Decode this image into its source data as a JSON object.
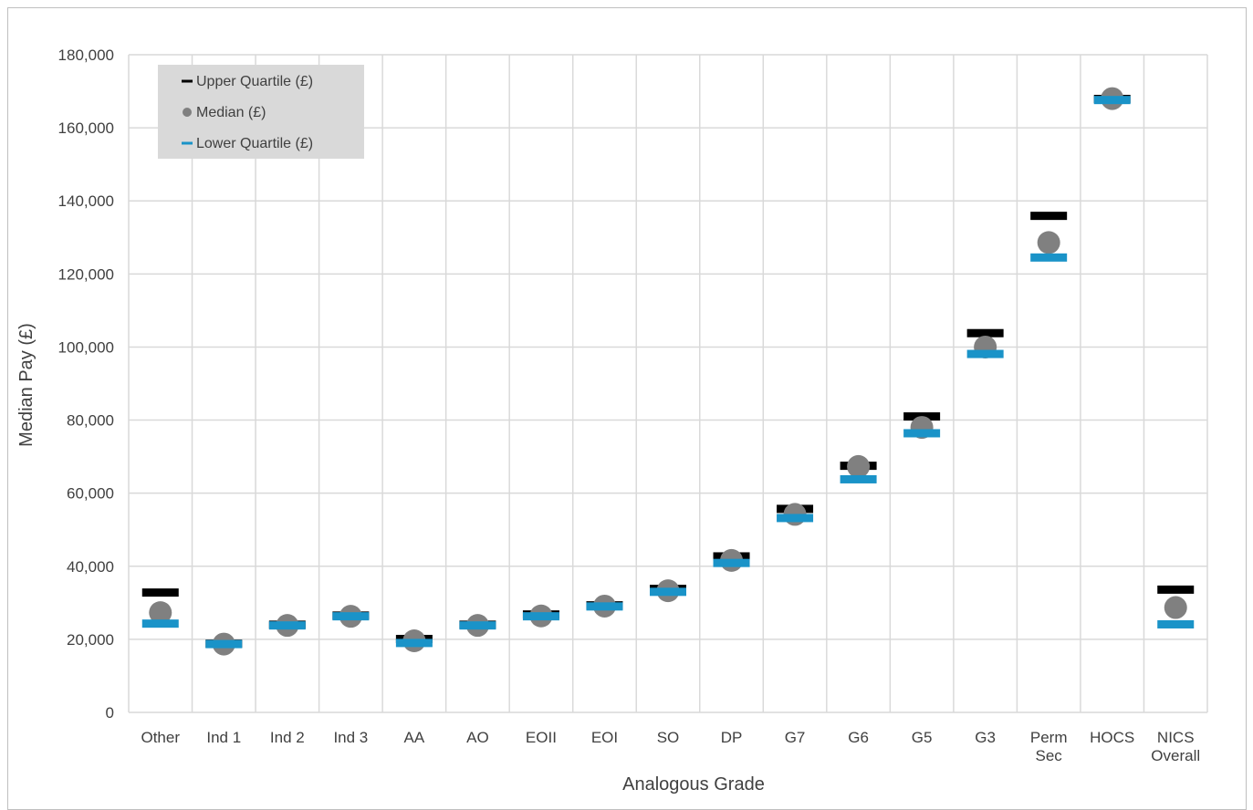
{
  "header": {
    "title": ""
  },
  "chart_data": {
    "type": "scatter",
    "title": "",
    "xlabel": "Analogous Grade",
    "ylabel": "Median Pay (£)",
    "ylim": [
      0,
      180000
    ],
    "yticks": [
      0,
      20000,
      40000,
      60000,
      80000,
      100000,
      120000,
      140000,
      160000,
      180000
    ],
    "ytick_labels": [
      "0",
      "20,000",
      "40,000",
      "60,000",
      "80,000",
      "100,000",
      "120,000",
      "140,000",
      "160,000",
      "180,000"
    ],
    "grid": true,
    "legend_position": "top-left",
    "categories": [
      [
        "Other"
      ],
      [
        "Ind 1"
      ],
      [
        "Ind 2"
      ],
      [
        "Ind 3"
      ],
      [
        "AA"
      ],
      [
        "AO"
      ],
      [
        "EOII"
      ],
      [
        "EOI"
      ],
      [
        "SO"
      ],
      [
        "DP"
      ],
      [
        "G7"
      ],
      [
        "G6"
      ],
      [
        "G5"
      ],
      [
        "G3"
      ],
      [
        "Perm",
        "Sec"
      ],
      [
        "HOCS"
      ],
      [
        "NICS",
        "Overall"
      ]
    ],
    "series": [
      {
        "name": "Upper Quartile (£)",
        "marker": "dash",
        "color": "#000000",
        "values": [
          32800,
          18800,
          24000,
          26500,
          20100,
          24000,
          26800,
          29300,
          33800,
          42700,
          55700,
          67500,
          81000,
          103800,
          135900,
          167900,
          33600
        ]
      },
      {
        "name": "Median (£)",
        "marker": "circle",
        "color": "#808080",
        "values": [
          27300,
          18700,
          23800,
          26300,
          19600,
          23800,
          26400,
          29100,
          33300,
          41600,
          54200,
          67300,
          78000,
          100000,
          128600,
          168000,
          28700
        ]
      },
      {
        "name": "Lower Quartile (£)",
        "marker": "dash",
        "color": "#1a93c8",
        "values": [
          24300,
          18700,
          23800,
          26300,
          19000,
          23800,
          26300,
          29000,
          33000,
          40900,
          53200,
          63800,
          76400,
          98100,
          124500,
          167600,
          24100
        ]
      }
    ]
  }
}
